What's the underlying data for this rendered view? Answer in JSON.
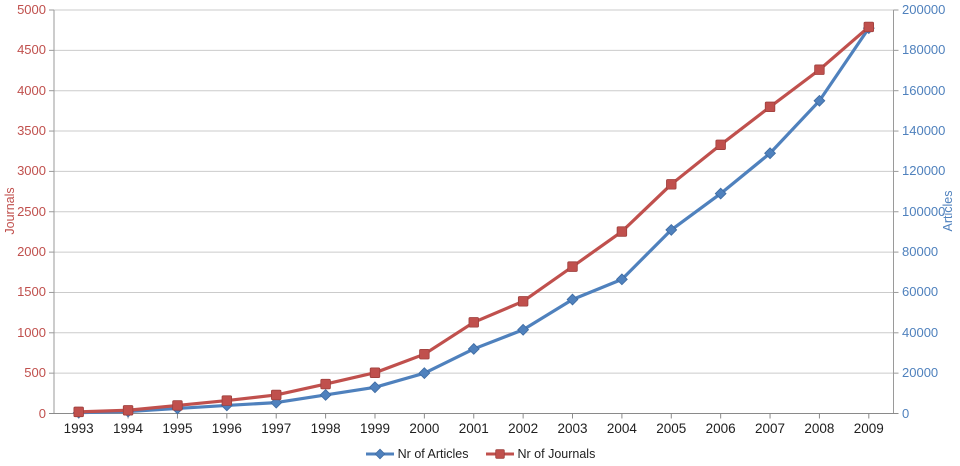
{
  "chart_data": {
    "type": "line",
    "title": "",
    "x": [
      1993,
      1994,
      1995,
      1996,
      1997,
      1998,
      1999,
      2000,
      2001,
      2002,
      2003,
      2004,
      2005,
      2006,
      2007,
      2008,
      2009
    ],
    "series": [
      {
        "name": "Nr of Articles",
        "axis": "right",
        "color": "#4F81BD",
        "marker": "diamond",
        "values": [
          400,
          1000,
          2500,
          4000,
          5400,
          9200,
          13000,
          20000,
          32000,
          41500,
          56500,
          66500,
          91000,
          109000,
          129000,
          155000,
          191000
        ]
      },
      {
        "name": "Nr of Journals",
        "axis": "left",
        "color": "#C0504D",
        "marker": "square",
        "values": [
          20,
          40,
          100,
          160,
          230,
          365,
          505,
          735,
          1130,
          1390,
          1820,
          2255,
          2840,
          3330,
          3800,
          4260,
          4790
        ]
      }
    ],
    "left_axis": {
      "label": "Journals",
      "min": 0,
      "max": 5000,
      "step": 500,
      "ticks": [
        0,
        500,
        1000,
        1500,
        2000,
        2500,
        3000,
        3500,
        4000,
        4500,
        5000
      ],
      "color": "#C0504D"
    },
    "right_axis": {
      "label": "Articles",
      "min": 0,
      "max": 200000,
      "step": 20000,
      "ticks": [
        0,
        20000,
        40000,
        60000,
        80000,
        100000,
        120000,
        140000,
        160000,
        180000,
        200000
      ],
      "color": "#4F81BD"
    },
    "grid": true,
    "legend_position": "bottom"
  },
  "colors": {
    "articles_blue": "#4F81BD",
    "articles_blue_edge": "#3D6AA1",
    "journals_red": "#C0504D",
    "journals_red_edge": "#9E3F3C",
    "grid": "#CBCBCB",
    "axis": "#9A9A9A",
    "x_axis_line": "#8A8A8A",
    "x_tick_text": "#1F1F1F"
  }
}
